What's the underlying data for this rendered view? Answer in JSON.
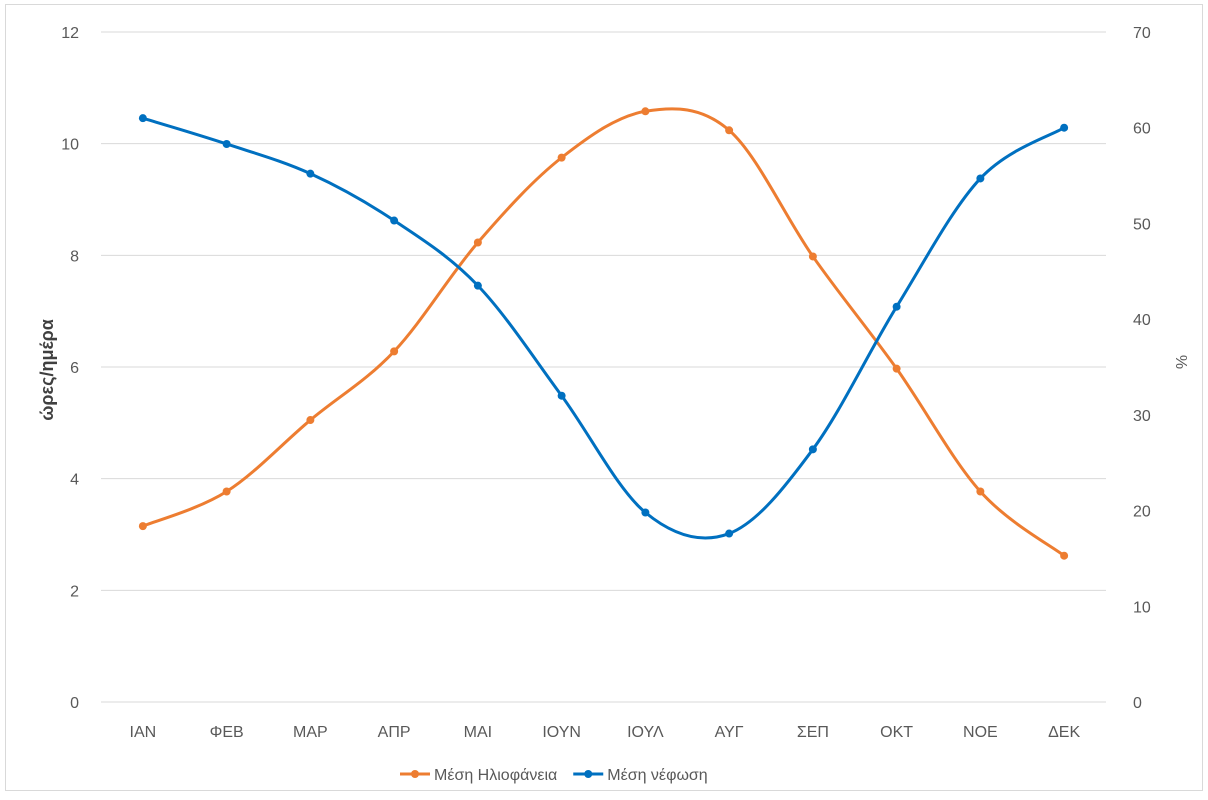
{
  "chart_data": {
    "type": "line",
    "categories": [
      "ΙΑΝ",
      "ΦΕΒ",
      "ΜΑΡ",
      "ΑΠΡ",
      "ΜΑΙ",
      "ΙΟΥΝ",
      "ΙΟΥΛ",
      "ΑΥΓ",
      "ΣΕΠ",
      "ΟΚΤ",
      "ΝΟΕ",
      "ΔΕΚ"
    ],
    "ylabel": "ώρες/ημέρα",
    "y2label": "%",
    "ylim": [
      0,
      12
    ],
    "y2lim": [
      0,
      70
    ],
    "yticks": [
      "0",
      "2",
      "4",
      "6",
      "8",
      "10",
      "12"
    ],
    "y2ticks": [
      "0",
      "10",
      "20",
      "30",
      "40",
      "50",
      "60",
      "70"
    ],
    "grid": true,
    "legend_position": "bottom",
    "smooth": true,
    "series": [
      {
        "name": "Μέση Ηλιοφάνεια",
        "axis": "left",
        "color": "#ED7D31",
        "values": [
          3.15,
          3.77,
          5.05,
          6.28,
          8.23,
          9.75,
          10.58,
          10.24,
          7.98,
          5.97,
          3.77,
          2.62
        ]
      },
      {
        "name": "Μέση νέφωση",
        "axis": "right",
        "color": "#0070C0",
        "values": [
          61.0,
          58.3,
          55.2,
          50.3,
          43.5,
          32.0,
          19.8,
          17.6,
          26.4,
          41.3,
          54.7,
          60.0
        ]
      }
    ]
  }
}
